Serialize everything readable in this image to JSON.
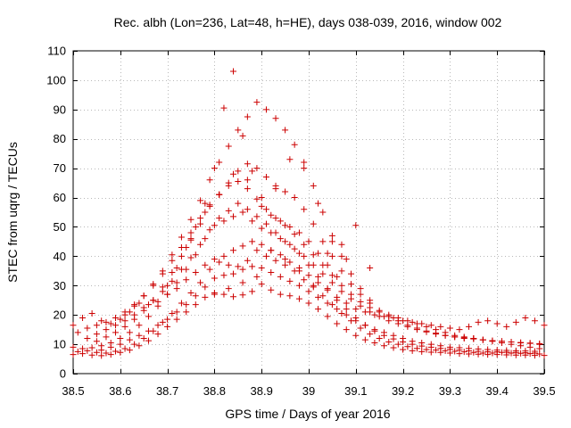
{
  "chart_data": {
    "type": "scatter",
    "title": "Rec. albh (Lon=236, Lat=48, h=HE), days 038-039, 2016, window 002",
    "xlabel": "GPS time / Days of year 2016",
    "ylabel": "STEC from uqrg / TECUs",
    "xlim": [
      38.5,
      39.5
    ],
    "ylim": [
      0,
      110
    ],
    "xticks": [
      38.5,
      38.6,
      38.7,
      38.8,
      38.9,
      39,
      39.1,
      39.2,
      39.3,
      39.4,
      39.5
    ],
    "xtick_labels": [
      "38.5",
      "38.6",
      "38.7",
      "38.8",
      "38.9",
      "39",
      "39.1",
      "39.2",
      "39.3",
      "39.4",
      "39.5"
    ],
    "yticks": [
      0,
      10,
      20,
      30,
      40,
      50,
      60,
      70,
      80,
      90,
      100,
      110
    ],
    "ytick_labels": [
      "0",
      "10",
      "20",
      "30",
      "40",
      "50",
      "60",
      "70",
      "80",
      "90",
      "100",
      "110"
    ],
    "grid": true,
    "marker": "+",
    "color": "#cc0000",
    "series": [
      {
        "name": "s1",
        "x": [
          38.5,
          38.52,
          38.54,
          38.56,
          38.58,
          38.6,
          38.62,
          38.64,
          38.66,
          38.68,
          38.7,
          38.72,
          38.74,
          38.76,
          38.78,
          38.8,
          38.82,
          38.84,
          38.86,
          38.88,
          38.9,
          38.92,
          38.94,
          38.96,
          38.98,
          39.0,
          39.02,
          39.04,
          39.06,
          39.08,
          39.1,
          39.12,
          39.14,
          39.16,
          39.18,
          39.2,
          39.22,
          39.24,
          39.26,
          39.28,
          39.3,
          39.32,
          39.34,
          39.36,
          39.38,
          39.4,
          39.42,
          39.44,
          39.46,
          39.48,
          39.5
        ],
        "y": [
          6.5,
          6.8,
          6.3,
          6.1,
          6.5,
          7.2,
          8.0,
          9.5,
          11.2,
          13.5,
          16.0,
          18.5,
          21.0,
          23.5,
          26.0,
          27.5,
          27.0,
          26.2,
          26.8,
          28.0,
          30.5,
          28.5,
          27.0,
          26.5,
          25.5,
          24.0,
          22.0,
          19.5,
          17.0,
          15.0,
          13.0,
          11.5,
          10.5,
          9.5,
          8.8,
          8.2,
          7.8,
          7.5,
          7.3,
          7.2,
          7.0,
          6.8,
          6.7,
          6.6,
          6.5,
          6.5,
          6.4,
          6.3,
          6.3,
          6.2,
          6.2
        ]
      },
      {
        "name": "s2",
        "x": [
          38.51,
          38.53,
          38.55,
          38.57,
          38.59,
          38.61,
          38.63,
          38.65,
          38.67,
          38.69,
          38.71,
          38.73,
          38.75,
          38.77,
          38.79,
          38.81,
          38.83,
          38.85,
          38.87,
          38.89,
          38.91,
          38.93,
          38.95,
          38.97,
          38.99,
          39.01,
          39.03,
          39.05,
          39.07,
          39.09,
          39.11,
          39.13,
          39.15,
          39.17,
          39.19,
          39.21,
          39.23,
          39.25,
          39.27,
          39.29,
          39.31,
          39.33,
          39.35,
          39.37,
          39.39,
          39.41,
          39.43,
          39.45,
          39.47,
          39.49
        ],
        "y": [
          7.5,
          7.8,
          7.2,
          7.0,
          7.6,
          8.5,
          10.0,
          12.0,
          14.5,
          17.5,
          20.5,
          24.0,
          27.5,
          31.0,
          35.5,
          38.0,
          37.0,
          36.5,
          38.5,
          42.0,
          40.0,
          38.5,
          37.0,
          35.0,
          32.0,
          29.5,
          26.5,
          23.5,
          20.5,
          18.0,
          15.5,
          13.5,
          12.0,
          10.8,
          10.0,
          9.2,
          8.6,
          8.2,
          8.0,
          7.8,
          7.6,
          7.4,
          7.2,
          7.0,
          7.0,
          7.2,
          7.0,
          6.9,
          6.8,
          6.7
        ]
      },
      {
        "name": "s3",
        "x": [
          38.5,
          38.52,
          38.54,
          38.56,
          38.58,
          38.6,
          38.62,
          38.64,
          38.66,
          38.68,
          38.7,
          38.72,
          38.74,
          38.76,
          38.78,
          38.8,
          38.82,
          38.84,
          38.86,
          38.88,
          38.9,
          38.92,
          38.94,
          38.96,
          38.98,
          39.0,
          39.02,
          39.04,
          39.06,
          39.08,
          39.1,
          39.12,
          39.14,
          39.16,
          39.18,
          39.2,
          39.22,
          39.24,
          39.26,
          39.28,
          39.3,
          39.32,
          39.34,
          39.36,
          39.38,
          39.4,
          39.42,
          39.44,
          39.46,
          39.48
        ],
        "y": [
          9.0,
          8.5,
          8.8,
          9.5,
          10.5,
          12.0,
          14.0,
          16.5,
          19.5,
          23.0,
          27.0,
          31.0,
          35.5,
          40.5,
          46.0,
          50.5,
          52.0,
          53.5,
          55.0,
          52.0,
          49.5,
          48.0,
          46.0,
          44.0,
          41.0,
          37.0,
          33.0,
          29.0,
          25.0,
          22.0,
          19.0,
          16.5,
          14.5,
          13.0,
          11.8,
          10.8,
          10.0,
          9.4,
          9.0,
          8.6,
          8.3,
          8.0,
          7.8,
          7.6,
          7.5,
          7.4,
          7.3,
          7.2,
          7.1,
          7.0
        ]
      },
      {
        "name": "s4",
        "x": [
          38.55,
          38.57,
          38.59,
          38.61,
          38.63,
          38.65,
          38.67,
          38.69,
          38.71,
          38.73,
          38.75,
          38.77,
          38.79,
          38.81,
          38.83,
          38.85,
          38.87,
          38.89,
          38.91,
          38.93,
          38.95,
          38.97,
          38.99,
          39.01,
          39.03,
          39.05,
          39.07,
          39.09,
          39.11,
          39.13,
          39.15,
          39.17,
          39.19,
          39.21,
          39.23,
          39.25,
          39.27,
          39.29,
          39.31,
          39.33,
          39.35,
          39.37,
          39.39,
          39.41,
          39.43,
          39.45,
          39.47,
          39.49
        ],
        "y": [
          11.0,
          12.5,
          14.0,
          16.0,
          18.5,
          21.5,
          25.0,
          29.5,
          34.5,
          40.0,
          45.5,
          51.0,
          57.0,
          61.0,
          65.0,
          69.0,
          71.5,
          70.0,
          67.0,
          64.0,
          62.0,
          60.0,
          56.0,
          51.0,
          45.0,
          40.0,
          35.0,
          30.5,
          27.0,
          24.0,
          21.5,
          19.5,
          18.0,
          16.5,
          15.5,
          14.5,
          13.8,
          13.0,
          12.5,
          12.0,
          11.8,
          11.5,
          11.2,
          11.0,
          10.8,
          10.6,
          10.4,
          10.2
        ]
      },
      {
        "name": "s5",
        "x": [
          38.61,
          38.63,
          38.65,
          38.67,
          38.69,
          38.71,
          38.73,
          38.75,
          38.77,
          38.79,
          38.81,
          38.83,
          38.85,
          38.87,
          38.89,
          38.91,
          38.93,
          38.95,
          38.97,
          38.99,
          39.01,
          39.03,
          39.05,
          39.07,
          39.09,
          39.11,
          39.13
        ],
        "y": [
          20.0,
          23.0,
          26.5,
          30.5,
          35.0,
          40.5,
          46.5,
          52.5,
          59.0,
          66.0,
          72.0,
          77.5,
          83.0,
          87.5,
          92.5,
          90.0,
          87.0,
          83.0,
          78.0,
          72.0,
          64.0,
          55.0,
          47.0,
          40.0,
          34.0,
          29.0,
          25.0
        ]
      },
      {
        "name": "s6",
        "x": [
          38.7,
          38.72,
          38.74,
          38.76,
          38.78,
          38.8,
          38.82,
          38.84,
          38.86,
          38.88,
          38.9,
          38.92,
          38.94,
          38.96,
          38.98,
          39.0,
          39.02,
          39.04,
          39.06
        ],
        "y": [
          30.0,
          36.0,
          43.0,
          50.0,
          58.0,
          70.0,
          90.5,
          103.0,
          81.0,
          69.0,
          60.0,
          54.0,
          52.0,
          50.0,
          48.0,
          45.0,
          41.0,
          37.0,
          33.0
        ]
      },
      {
        "name": "s7",
        "x": [
          38.5,
          38.52,
          38.54,
          38.56,
          38.58,
          38.6,
          38.62,
          38.64,
          38.66,
          38.68,
          38.7,
          38.72,
          38.74,
          38.76,
          38.78,
          38.8,
          38.82,
          38.84,
          38.86,
          38.88,
          38.9,
          38.92,
          38.94,
          38.96,
          38.98,
          39.0,
          39.02,
          39.04,
          39.06,
          39.08,
          39.1,
          39.12,
          39.14,
          39.16,
          39.18,
          39.2,
          39.22,
          39.24,
          39.26,
          39.28,
          39.3,
          39.32,
          39.34,
          39.36,
          39.38,
          39.4,
          39.42,
          39.44,
          39.46,
          39.48,
          39.5
        ],
        "y": [
          16.5,
          19.0,
          20.5,
          18.0,
          17.0,
          18.5,
          21.0,
          24.0,
          23.5,
          24.5,
          27.0,
          29.0,
          32.0,
          34.5,
          37.0,
          39.0,
          40.0,
          42.0,
          43.5,
          45.0,
          44.0,
          42.0,
          40.5,
          38.0,
          36.0,
          33.5,
          31.0,
          28.5,
          26.0,
          24.0,
          22.0,
          21.0,
          20.0,
          19.5,
          19.0,
          18.0,
          17.5,
          17.0,
          16.5,
          16.0,
          15.5,
          15.0,
          16.0,
          17.5,
          18.0,
          17.0,
          16.0,
          17.5,
          19.0,
          18.0,
          16.5
        ]
      },
      {
        "name": "s8",
        "x": [
          38.53,
          38.55,
          38.57,
          38.59,
          38.61,
          38.63,
          38.65,
          38.67,
          38.69,
          38.71,
          38.73,
          38.75,
          38.77,
          38.79,
          38.81,
          38.83,
          38.85,
          38.87,
          38.89,
          38.91,
          38.93,
          38.95,
          38.97,
          38.99,
          39.01,
          39.03,
          39.05,
          39.07,
          39.09,
          39.11,
          39.13,
          39.15,
          39.17,
          39.19,
          39.21,
          39.23,
          39.25,
          39.27,
          39.29,
          39.31,
          39.33,
          39.35,
          39.37,
          39.39,
          39.41,
          39.43,
          39.45,
          39.47,
          39.49
        ],
        "y": [
          12.0,
          13.5,
          15.0,
          16.5,
          18.0,
          20.0,
          22.5,
          25.0,
          28.0,
          31.5,
          35.5,
          39.5,
          44.0,
          49.0,
          53.0,
          55.5,
          58.0,
          56.0,
          53.5,
          51.0,
          48.0,
          45.0,
          42.5,
          40.0,
          37.0,
          34.0,
          31.0,
          28.0,
          25.5,
          23.0,
          21.0,
          19.5,
          18.0,
          17.0,
          16.0,
          15.0,
          14.2,
          13.5,
          13.0,
          12.5,
          12.2,
          12.0,
          11.5,
          11.2,
          11.0,
          10.8,
          10.5,
          10.3,
          10.0
        ]
      },
      {
        "name": "s9",
        "x": [
          38.51,
          38.53,
          38.55,
          38.57,
          38.59,
          38.61,
          38.63,
          38.65,
          38.67,
          38.69,
          38.71,
          38.73,
          38.75,
          38.77,
          38.79,
          38.81,
          38.83,
          38.85,
          38.87,
          38.89,
          38.91,
          38.93,
          38.95,
          38.97,
          38.99,
          39.01,
          39.03,
          39.05,
          39.07,
          39.09,
          39.11,
          39.13,
          39.15,
          39.17,
          39.19,
          39.21,
          39.23,
          39.25,
          39.27,
          39.29,
          39.31,
          39.33,
          39.35,
          39.37,
          39.39,
          39.41,
          39.43,
          39.45,
          39.47,
          39.49
        ],
        "y": [
          14.0,
          15.5,
          16.5,
          17.5,
          19.0,
          21.0,
          23.5,
          26.5,
          30.0,
          34.0,
          38.5,
          43.0,
          48.0,
          53.0,
          57.5,
          61.0,
          64.0,
          65.5,
          63.0,
          59.5,
          56.0,
          53.0,
          50.5,
          47.5,
          44.0,
          40.5,
          37.0,
          33.5,
          30.0,
          27.0,
          24.5,
          22.5,
          21.0,
          20.0,
          19.0,
          18.0,
          17.0,
          16.0,
          15.0,
          14.0,
          13.0,
          12.5,
          12.0,
          11.5,
          11.0,
          10.5,
          10.0,
          9.5,
          9.0,
          8.5
        ]
      },
      {
        "name": "s10",
        "x": [
          38.56,
          38.58,
          38.6,
          38.62,
          38.64,
          38.66,
          38.68,
          38.7,
          38.72,
          38.74,
          38.76,
          38.78,
          38.8,
          38.82,
          38.84,
          38.86,
          38.88,
          38.9,
          38.92,
          38.94,
          38.96,
          38.98,
          39.0,
          39.02,
          39.04,
          39.06,
          39.08,
          39.1,
          39.12,
          39.14,
          39.16,
          39.18,
          39.2,
          39.22,
          39.24,
          39.26,
          39.28,
          39.3,
          39.32,
          39.34,
          39.36,
          39.38,
          39.4,
          39.42,
          39.44,
          39.46,
          39.48
        ],
        "y": [
          8.0,
          9.0,
          10.0,
          11.5,
          13.0,
          14.5,
          16.5,
          18.5,
          21.0,
          23.5,
          26.5,
          29.5,
          32.5,
          33.5,
          34.0,
          35.5,
          36.5,
          36.0,
          34.5,
          33.0,
          31.5,
          30.0,
          28.0,
          26.0,
          24.0,
          22.0,
          20.0,
          18.0,
          16.5,
          15.0,
          14.0,
          13.0,
          12.0,
          11.0,
          10.5,
          10.0,
          9.5,
          9.0,
          8.8,
          8.6,
          8.4,
          8.2,
          8.0,
          7.9,
          7.8,
          7.7,
          7.6
        ]
      },
      {
        "name": "s11",
        "x": [
          38.75,
          38.78,
          38.81,
          38.84,
          38.87,
          38.9,
          38.93,
          38.96,
          38.99,
          39.02,
          39.05,
          39.08
        ],
        "y": [
          46.0,
          55.0,
          61.0,
          68.0,
          66.0,
          57.0,
          63.0,
          73.0,
          70.0,
          58.0,
          45.0,
          39.0
        ]
      },
      {
        "name": "s12",
        "x": [
          38.8,
          38.83,
          38.86,
          38.89,
          38.92,
          38.95,
          38.98,
          39.01,
          39.04,
          39.07,
          39.1,
          39.13
        ],
        "y": [
          27.0,
          29.0,
          31.0,
          33.0,
          42.0,
          39.0,
          35.0,
          30.0,
          41.0,
          44.0,
          50.5,
          36.0
        ]
      }
    ]
  }
}
